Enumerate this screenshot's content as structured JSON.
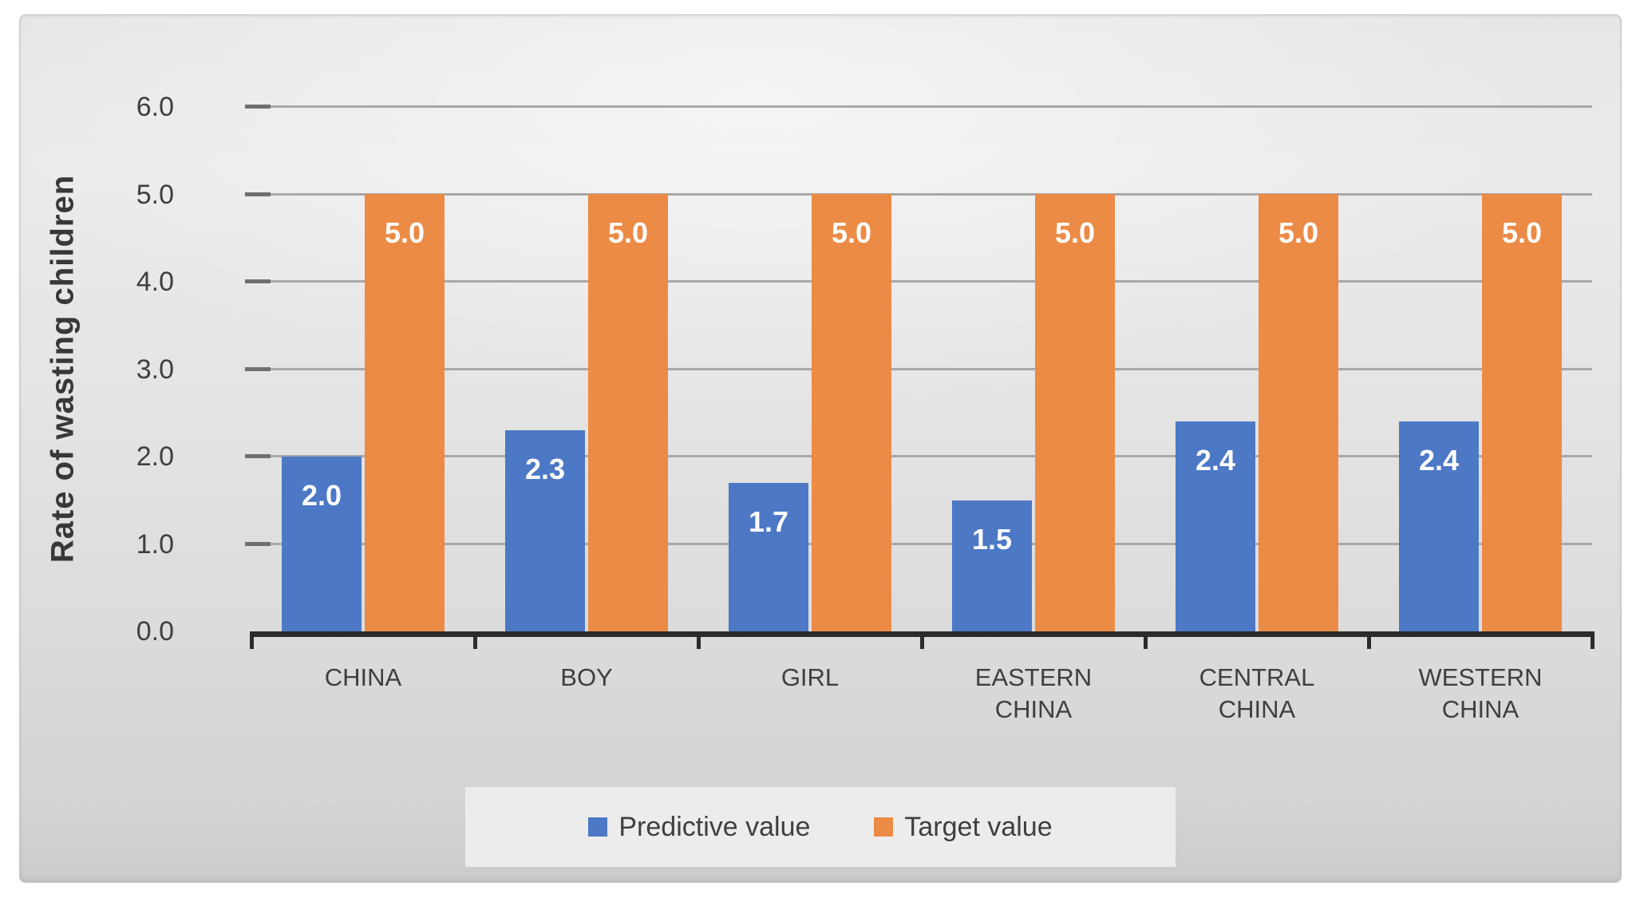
{
  "chart_data": {
    "type": "bar",
    "title": "",
    "categories": [
      "CHINA",
      "BOY",
      "GIRL",
      "EASTERN CHINA",
      "CENTRAL CHINA",
      "WESTERN CHINA"
    ],
    "series": [
      {
        "name": "Predictive value",
        "color": "#4C78C6",
        "values": [
          2.0,
          2.3,
          1.7,
          1.5,
          2.4,
          2.4
        ],
        "labels": [
          "2.0",
          "2.3",
          "1.7",
          "1.5",
          "2.4",
          "2.4"
        ]
      },
      {
        "name": "Target value",
        "color": "#EC8B46",
        "values": [
          5.0,
          5.0,
          5.0,
          5.0,
          5.0,
          5.0
        ],
        "labels": [
          "5.0",
          "5.0",
          "5.0",
          "5.0",
          "5.0",
          "5.0"
        ]
      }
    ],
    "xlabel": "",
    "ylabel": "Rate of wasting children",
    "ylim": [
      0,
      6
    ],
    "yticks": [
      0,
      1,
      2,
      3,
      4,
      5,
      6
    ],
    "ytick_labels": [
      "0.0",
      "1.0",
      "2.0",
      "3.0",
      "4.0",
      "5.0",
      "6.0"
    ],
    "grid": true,
    "legend_position": "bottom-center",
    "data_label_position": "inside-end",
    "data_label_color": "#ffffff"
  },
  "colors": {
    "grid": "#a8a8a8",
    "tick": "#6f6f6f",
    "axis": "#2b2b2b",
    "text": "#3f3f3f",
    "legend_bg": "#ececec"
  }
}
